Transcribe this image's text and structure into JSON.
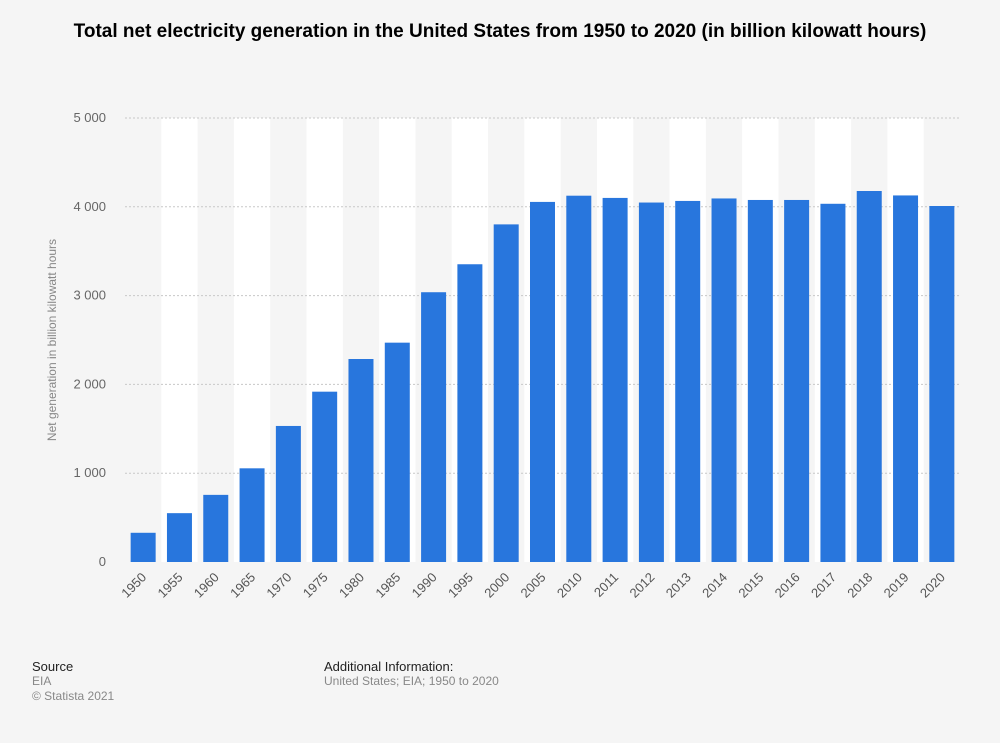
{
  "chart_data": {
    "type": "bar",
    "title": "Total net electricity generation in the United States from 1950 to 2020 (in billion kilowatt hours)",
    "xlabel": "",
    "ylabel": "Net generation in billion kilowatt hours",
    "categories": [
      "1950",
      "1955",
      "1960",
      "1965",
      "1970",
      "1975",
      "1980",
      "1985",
      "1990",
      "1995",
      "2000",
      "2005",
      "2010",
      "2011",
      "2012",
      "2013",
      "2014",
      "2015",
      "2016",
      "2017",
      "2018",
      "2019",
      "2020"
    ],
    "values": [
      329,
      550,
      756,
      1055,
      1532,
      1918,
      2286,
      2470,
      3038,
      3353,
      3802,
      4055,
      4125,
      4100,
      4048,
      4066,
      4094,
      4077,
      4077,
      4034,
      4178,
      4128,
      4009
    ],
    "ylim": [
      0,
      5000
    ],
    "yticks": [
      "0",
      "1 000",
      "2 000",
      "3 000",
      "4 000",
      "5 000"
    ],
    "bar_color": "#2876dd",
    "grid": true
  },
  "footer": {
    "source_label": "Source",
    "source_value": "EIA",
    "copyright": "© Statista 2021",
    "info_label": "Additional Information:",
    "info_value": "United States; EIA; 1950 to 2020"
  }
}
